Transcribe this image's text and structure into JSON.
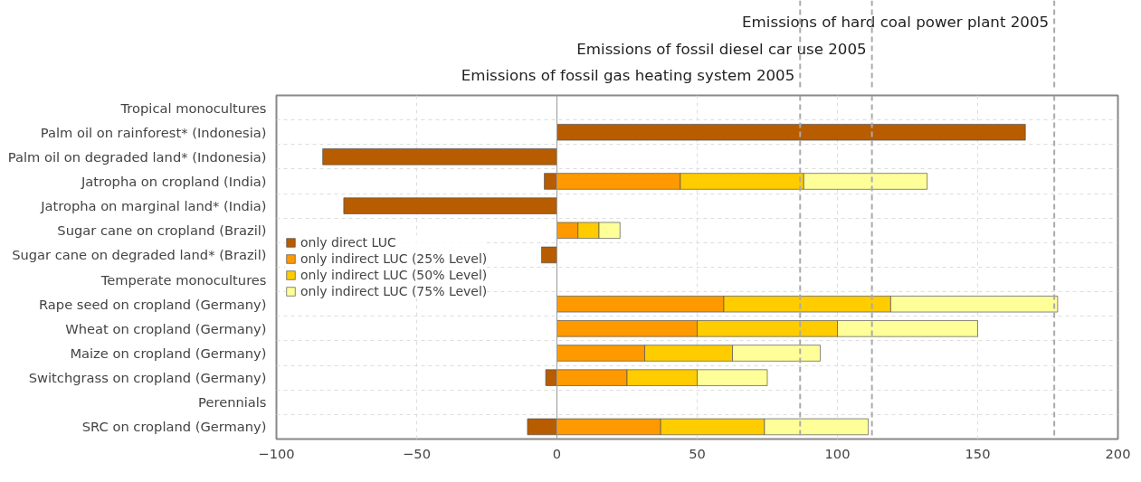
{
  "chart_data": {
    "type": "bar",
    "orientation": "horizontal",
    "stacked": true,
    "categories": [
      "Tropical monocultures",
      "Palm oil on rainforest* (Indonesia)",
      "Palm oil on degraded land* (Indonesia)",
      "Jatropha on cropland (India)",
      "Jatropha on marginal land* (India)",
      "Sugar cane on cropland (Brazil)",
      "Sugar cane on degraded land* (Brazil)",
      "Temperate monocultures",
      "Rape seed on cropland (Germany)",
      "Wheat on cropland (Germany)",
      "Maize on cropland (Germany)",
      "Switchgrass on cropland (Germany)",
      "Perennials",
      "SRC on cropland (Germany)"
    ],
    "series": [
      {
        "name": "only direct LUC",
        "color": "#b85c00",
        "values": [
          null,
          167,
          -83.5,
          -4.5,
          -76,
          null,
          -5.5,
          null,
          null,
          null,
          null,
          -4,
          null,
          -10.5
        ]
      },
      {
        "name": "only indirect LUC (25% Level)",
        "color": "#ff9900",
        "values": [
          null,
          null,
          null,
          44,
          null,
          7.5,
          null,
          null,
          59.5,
          50,
          31.3,
          25,
          null,
          37
        ]
      },
      {
        "name": "only indirect LUC (50% Level)",
        "color": "#ffcc00",
        "values": [
          null,
          null,
          null,
          44,
          null,
          7.5,
          null,
          null,
          59.5,
          50,
          31.3,
          25,
          null,
          37
        ]
      },
      {
        "name": "only indirect LUC (75% Level)",
        "color": "#ffff99",
        "values": [
          null,
          null,
          null,
          44,
          null,
          7.5,
          null,
          null,
          59.5,
          50,
          31.3,
          25,
          null,
          37
        ]
      }
    ],
    "xlim": [
      -100,
      200
    ],
    "xticks": [
      -100,
      -50,
      0,
      50,
      100,
      150,
      200
    ],
    "ref_lines": [
      {
        "axis": "x",
        "value": 0,
        "color": "#999999",
        "line_style": "solid"
      },
      {
        "axis": "x",
        "value": 86.7,
        "label": "Emissions of fossil gas heating system 2005",
        "color": "#aaaaaa",
        "line_style": "dashed"
      },
      {
        "axis": "x",
        "value": 112.3,
        "label": "Emissions of fossil diesel car use 2005",
        "color": "#aaaaaa",
        "line_style": "dashed"
      },
      {
        "axis": "x",
        "value": 177.3,
        "label": "Emissions of hard coal power plant 2005",
        "color": "#aaaaaa",
        "line_style": "dashed"
      }
    ],
    "grid": true,
    "legend": "center left"
  }
}
